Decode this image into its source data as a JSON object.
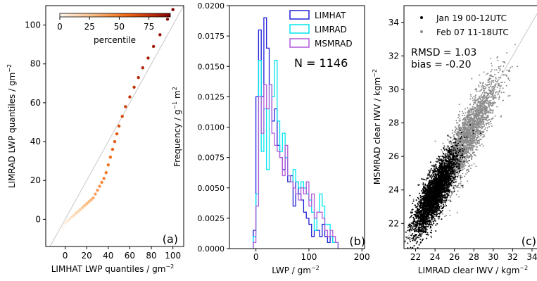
{
  "chart_data": [
    {
      "type": "scatter",
      "panel_label": "(a)",
      "xlabel": "LIMHAT LWP quantiles / gm",
      "ylabel": "LIMRAD LWP quantiles / gm",
      "unit_sup": "−2",
      "xlim": [
        -18,
        110
      ],
      "ylim": [
        -14,
        110
      ],
      "xticks": [
        0,
        20,
        40,
        60,
        80,
        100
      ],
      "yticks": [
        0,
        20,
        40,
        60,
        80,
        100
      ],
      "colorbar": {
        "label": "percentile",
        "ticks": [
          0,
          25,
          50,
          75
        ],
        "range": [
          0,
          93
        ]
      },
      "quantile_points": [
        [
          -2,
          -4
        ],
        [
          0,
          -2
        ],
        [
          2,
          -1
        ],
        [
          4,
          0
        ],
        [
          6,
          1
        ],
        [
          8,
          2
        ],
        [
          10,
          3
        ],
        [
          12,
          4
        ],
        [
          14,
          5
        ],
        [
          16,
          6
        ],
        [
          18,
          7
        ],
        [
          20,
          8
        ],
        [
          22,
          9
        ],
        [
          24,
          10
        ],
        [
          26,
          11
        ],
        [
          28,
          13
        ],
        [
          30,
          15
        ],
        [
          32,
          17
        ],
        [
          34,
          19
        ],
        [
          36,
          21
        ],
        [
          38,
          24
        ],
        [
          40,
          28
        ],
        [
          42,
          32
        ],
        [
          44,
          36
        ],
        [
          46,
          40
        ],
        [
          48,
          44
        ],
        [
          50,
          48
        ],
        [
          53,
          53
        ],
        [
          56,
          58
        ],
        [
          60,
          63
        ],
        [
          64,
          68
        ],
        [
          68,
          73
        ],
        [
          72,
          78
        ],
        [
          77,
          83
        ],
        [
          82,
          89
        ],
        [
          88,
          95
        ],
        [
          95,
          103
        ],
        [
          100,
          108
        ]
      ]
    },
    {
      "type": "histogram",
      "panel_label": "(b)",
      "xlabel": "LWP / gm",
      "ylabel": "Frequency / g",
      "ylabel_unit": "m",
      "unit_sup_x": "−2",
      "unit_sup_y1": "−1",
      "unit_sup_y2": "2",
      "annotation": "N = 1146",
      "xlim": [
        -50,
        205
      ],
      "ylim": [
        0,
        0.02
      ],
      "xticks": [
        0,
        100,
        200
      ],
      "yticks": [
        "0.0000",
        "0.0025",
        "0.0050",
        "0.0075",
        "0.0100",
        "0.0125",
        "0.0150",
        "0.0175",
        "0.0200"
      ],
      "bin_width": 5,
      "series": [
        {
          "name": "LIMHAT",
          "color": "#1f1fd8",
          "bin_start": -5,
          "values": [
            0.0015,
            0.0125,
            0.018,
            0.0125,
            0.019,
            0.0165,
            0.0135,
            0.0105,
            0.0115,
            0.0085,
            0.0075,
            0.0065,
            0.0075,
            0.0055,
            0.006,
            0.0035,
            0.0055,
            0.0045,
            0.004,
            0.003,
            0.0025,
            0.002,
            0.001,
            0.0015,
            0.0015,
            0.001,
            0.002,
            0.001,
            0.0005,
            0.001,
            0.0005,
            0.0005
          ]
        },
        {
          "name": "LIMRAD",
          "color": "#00e5ee",
          "bin_start": -5,
          "values": [
            0.001,
            0.0045,
            0.0155,
            0.008,
            0.0115,
            0.0065,
            0.0135,
            0.0125,
            0.0155,
            0.0105,
            0.008,
            0.0095,
            0.0075,
            0.006,
            0.0055,
            0.0065,
            0.0055,
            0.005,
            0.0055,
            0.005,
            0.0045,
            0.004,
            0.003,
            0.0015,
            0.003,
            0.0045,
            0.0035,
            0.002,
            0.002,
            0.001,
            0.0005,
            0.0005
          ]
        },
        {
          "name": "MSMRAD",
          "color": "#b05ad8",
          "bin_start": -5,
          "values": [
            0.0005,
            0.0035,
            0.0125,
            0.0095,
            0.0135,
            0.0115,
            0.0135,
            0.0095,
            0.0085,
            0.008,
            0.0075,
            0.006,
            0.0085,
            0.006,
            0.0055,
            0.005,
            0.0045,
            0.004,
            0.005,
            0.0045,
            0.0055,
            0.0035,
            0.0045,
            0.0025,
            0.003,
            0.003,
            0.0025,
            0.0015,
            0.001,
            0.0015,
            0.001,
            0.0005
          ]
        }
      ]
    },
    {
      "type": "scatter",
      "panel_label": "(c)",
      "xlabel": "LIMRAD clear IWV / kgm",
      "ylabel": "MSMRAD clear IWV / kgm",
      "unit_sup": "−2",
      "xlim": [
        20.8,
        34.8
      ],
      "ylim": [
        20.5,
        35
      ],
      "xticks": [
        22,
        24,
        26,
        28,
        30,
        32,
        34
      ],
      "yticks": [
        22,
        24,
        26,
        28,
        30,
        32,
        34
      ],
      "stats": {
        "rmsd_text": "RMSD = 1.03",
        "bias_text": "bias = -0.20"
      },
      "series": [
        {
          "name": "Jan 19 00-12UTC",
          "color": "#000000",
          "center": [
            24.0,
            23.8
          ],
          "spread": [
            1.1,
            1.2
          ],
          "corr": 0.82,
          "n": 3200
        },
        {
          "name": "Feb 07 11-18UTC",
          "color": "#8c8c8c",
          "center": [
            27.2,
            27.0
          ],
          "spread": [
            1.6,
            1.8
          ],
          "corr": 0.88,
          "n": 2600
        }
      ]
    }
  ]
}
